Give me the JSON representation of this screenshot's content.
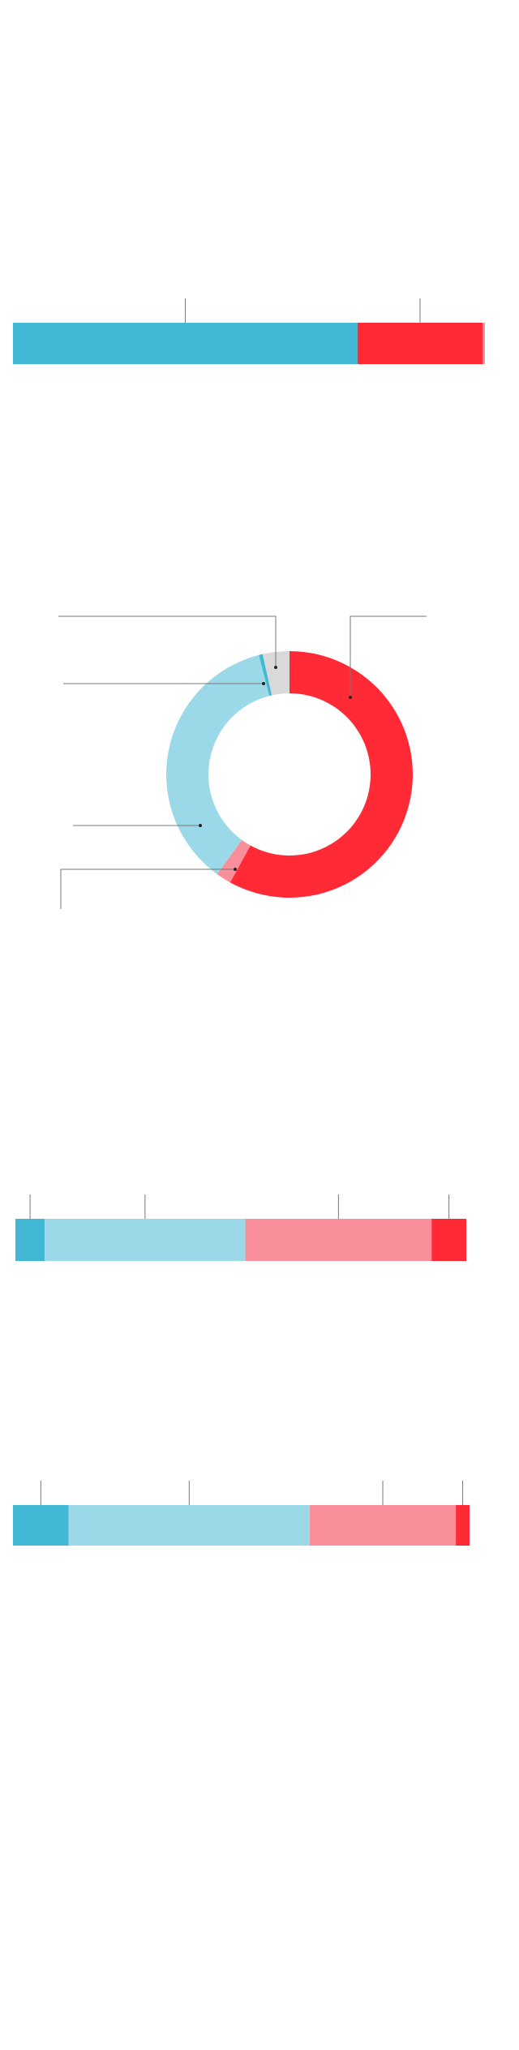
{
  "chart_data": [
    {
      "type": "stacked-bar",
      "xlim": [
        0,
        100
      ],
      "series": [
        {
          "color": "#42b8d4",
          "values": [
            73
          ]
        },
        {
          "color": "#ff2a36",
          "values": [
            26.5
          ]
        },
        {
          "color": "#f98f9a",
          "values": [
            0.5
          ]
        }
      ]
    },
    {
      "type": "donut",
      "values": [
        58,
        2,
        36,
        0.5,
        3.5
      ],
      "colors": [
        "#ff2a36",
        "#f98f9a",
        "#9cd9e8",
        "#42b8d4",
        "#d9d9d9"
      ]
    },
    {
      "type": "stacked-bar",
      "xlim": [
        0,
        100
      ],
      "series": [
        {
          "color": "#42b8d4",
          "values": [
            6.5
          ]
        },
        {
          "color": "#9cd9e8",
          "values": [
            44.5
          ]
        },
        {
          "color": "#f98f9a",
          "values": [
            41.3
          ]
        },
        {
          "color": "#ff2a36",
          "values": [
            7.7
          ]
        }
      ]
    },
    {
      "type": "stacked-bar",
      "xlim": [
        0,
        100
      ],
      "series": [
        {
          "color": "#42b8d4",
          "values": [
            12.2
          ]
        },
        {
          "color": "#9cd9e8",
          "values": [
            52.8
          ]
        },
        {
          "color": "#f98f9a",
          "values": [
            32
          ]
        },
        {
          "color": "#ff2a36",
          "values": [
            3
          ]
        }
      ]
    }
  ]
}
